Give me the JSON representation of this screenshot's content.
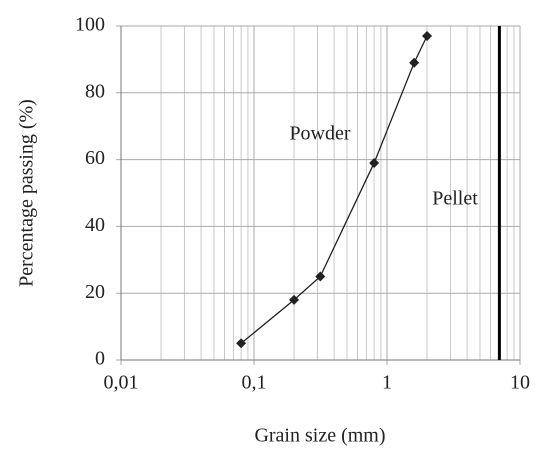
{
  "chart_data": {
    "type": "line",
    "xlabel": "Grain size (mm)",
    "ylabel": "Percentage passing (%)",
    "xscale": "log",
    "xlim": [
      0.01,
      10
    ],
    "ylim": [
      0,
      100
    ],
    "xticks": [
      {
        "value": 0.01,
        "label": "0,01"
      },
      {
        "value": 0.1,
        "label": "0,1"
      },
      1,
      10
    ],
    "x_minor_ticks": [
      0.02,
      0.03,
      0.04,
      0.05,
      0.06,
      0.07,
      0.08,
      0.09,
      0.2,
      0.3,
      0.4,
      0.5,
      0.6,
      0.7,
      0.8,
      0.9,
      2,
      3,
      4,
      5,
      6,
      7,
      8,
      9
    ],
    "yticks": [
      0,
      20,
      40,
      60,
      80,
      100
    ],
    "grid": true,
    "series": [
      {
        "name": "Powder",
        "color": "#222222",
        "marker": "diamond",
        "x": [
          0.08,
          0.2,
          0.315,
          0.8,
          1.6,
          2
        ],
        "values": [
          5,
          18,
          25,
          59,
          89,
          97
        ]
      },
      {
        "name": "Pellet",
        "color": "#000000",
        "marker": "none",
        "x": [
          7,
          7
        ],
        "values": [
          0,
          100
        ]
      }
    ]
  }
}
